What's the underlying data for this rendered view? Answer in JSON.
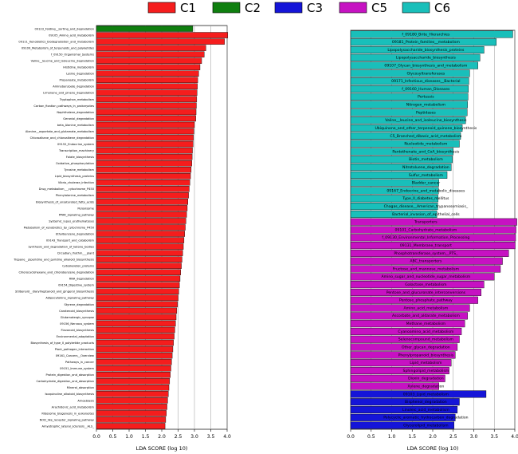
{
  "chart_data": [
    {
      "type": "bar",
      "orientation": "horizontal",
      "xlabel": "LDA SCORE (log 10)",
      "xlim": [
        0,
        4.0
      ],
      "xticks": [
        "0.0",
        "0.5",
        "1.0",
        "1.5",
        "2.0",
        "2.5",
        "3.0",
        "3.5",
        "4.0"
      ],
      "grid": true,
      "bars": [
        {
          "label": "09123_Folding__sorting_and_degradation",
          "value": 2.95,
          "group": "C2"
        },
        {
          "label": "09105_Amino_acid_metabolism",
          "value": 4.02,
          "group": "C1"
        },
        {
          "label": "09111_Xenobiotics_biodegradation_and_metabolism",
          "value": 3.92,
          "group": "C1"
        },
        {
          "label": "09109_Metabolism_of_terpenoids_and_polyketides",
          "value": 3.35,
          "group": "C1"
        },
        {
          "label": "f_09150_Organismal_Systems",
          "value": 3.3,
          "group": "C1"
        },
        {
          "label": "Valine__leucine_and_isoleucine_degradation",
          "value": 3.22,
          "group": "C1"
        },
        {
          "label": "Histidine_metabolism",
          "value": 3.17,
          "group": "C1"
        },
        {
          "label": "Lysine_degradation",
          "value": 3.13,
          "group": "C1"
        },
        {
          "label": "Propanoate_metabolism",
          "value": 3.1,
          "group": "C1"
        },
        {
          "label": "Aminobenzoate_degradation",
          "value": 3.09,
          "group": "C1"
        },
        {
          "label": "Limonene_and_pinene_degradation",
          "value": 3.08,
          "group": "C1"
        },
        {
          "label": "Tryptophan_metabolism",
          "value": 3.07,
          "group": "C1"
        },
        {
          "label": "Carbon_fixation_pathways_in_prokaryotes",
          "value": 3.06,
          "group": "C1"
        },
        {
          "label": "Naphthalene_degradation",
          "value": 3.05,
          "group": "C1"
        },
        {
          "label": "Geraniol_degradation",
          "value": 3.04,
          "group": "C1"
        },
        {
          "label": "beta_Alanine_metabolism",
          "value": 3.0,
          "group": "C1"
        },
        {
          "label": "Alanine__aspartate_and_glutamate_metabolism",
          "value": 2.98,
          "group": "C1"
        },
        {
          "label": "Chloroalkane_and_chloroalkene_degradation",
          "value": 2.97,
          "group": "C1"
        },
        {
          "label": "09152_Endocrine_system",
          "value": 2.96,
          "group": "C1"
        },
        {
          "label": "Transcription_machinery",
          "value": 2.94,
          "group": "C1"
        },
        {
          "label": "Folate_biosynthesis",
          "value": 2.93,
          "group": "C1"
        },
        {
          "label": "Oxidative_phosphorylation",
          "value": 2.92,
          "group": "C1"
        },
        {
          "label": "Tyrosine_metabolism",
          "value": 2.9,
          "group": "C1"
        },
        {
          "label": "Lipid_biosynthesis_proteins",
          "value": 2.88,
          "group": "C1"
        },
        {
          "label": "Vibrio_cholerae_infection",
          "value": 2.86,
          "group": "C1"
        },
        {
          "label": "Drug_metabolism___cytochrome_P450",
          "value": 2.84,
          "group": "C1"
        },
        {
          "label": "Phenylalanine_metabolism",
          "value": 2.82,
          "group": "C1"
        },
        {
          "label": "Biosynthesis_of_unsaturated_fatty_acids",
          "value": 2.8,
          "group": "C1"
        },
        {
          "label": "Peroxisome",
          "value": 2.78,
          "group": "C1"
        },
        {
          "label": "PPAR_signaling_pathway",
          "value": 2.76,
          "group": "C1"
        },
        {
          "label": "Systemic_lupus_erythematosus",
          "value": 2.74,
          "group": "C1"
        },
        {
          "label": "Metabolism_of_xenobiotics_by_cytochrome_P450",
          "value": 2.72,
          "group": "C1"
        },
        {
          "label": "Ethylbenzene_degradation",
          "value": 2.7,
          "group": "C1"
        },
        {
          "label": "09143_Transport_and_catabolism",
          "value": 2.68,
          "group": "C1"
        },
        {
          "label": "Synthesis_and_degradation_of_ketone_bodies",
          "value": 2.66,
          "group": "C1"
        },
        {
          "label": "Circadian_rhythm___plant",
          "value": 2.64,
          "group": "C1"
        },
        {
          "label": "Tropane__piperidine_and_pyridine_alkaloid_biosynthesis",
          "value": 2.62,
          "group": "C1"
        },
        {
          "label": "Cytoskeleton_proteins",
          "value": 2.6,
          "group": "C1"
        },
        {
          "label": "Chlorocyclohexane_and_chlorobenzene_degradation",
          "value": 2.58,
          "group": "C1"
        },
        {
          "label": "RNA_degradation",
          "value": 2.56,
          "group": "C1"
        },
        {
          "label": "09154_Digestive_system",
          "value": 2.54,
          "group": "C1"
        },
        {
          "label": "Stilbenoid__diarylheptanoid_and_gingerol_biosynthesis",
          "value": 2.52,
          "group": "C1"
        },
        {
          "label": "Adipocytokine_signaling_pathway",
          "value": 2.5,
          "group": "C1"
        },
        {
          "label": "Styrene_degradation",
          "value": 2.48,
          "group": "C1"
        },
        {
          "label": "Carotenoid_biosynthesis",
          "value": 2.46,
          "group": "C1"
        },
        {
          "label": "Glutamatergic_synapse",
          "value": 2.44,
          "group": "C1"
        },
        {
          "label": "09156_Nervous_system",
          "value": 2.42,
          "group": "C1"
        },
        {
          "label": "Flavonoid_biosynthesis",
          "value": 2.4,
          "group": "C1"
        },
        {
          "label": "Environmental_adaptation",
          "value": 2.38,
          "group": "C1"
        },
        {
          "label": "Biosynthesis_of_type_II_polyketide_products",
          "value": 2.36,
          "group": "C1"
        },
        {
          "label": "Plant_pathogen_interaction",
          "value": 2.34,
          "group": "C1"
        },
        {
          "label": "09161_Cancers__Overview",
          "value": 2.32,
          "group": "C1"
        },
        {
          "label": "Pathways_in_cancer",
          "value": 2.3,
          "group": "C1"
        },
        {
          "label": "09151_Immune_system",
          "value": 2.28,
          "group": "C1"
        },
        {
          "label": "Protein_digestion_and_absorption",
          "value": 2.26,
          "group": "C1"
        },
        {
          "label": "Carbohydrate_digestion_and_absorption",
          "value": 2.24,
          "group": "C1"
        },
        {
          "label": "Mineral_absorption",
          "value": 2.22,
          "group": "C1"
        },
        {
          "label": "Isoquinoline_alkaloid_biosynthesis",
          "value": 2.2,
          "group": "C1"
        },
        {
          "label": "Amoebiasis",
          "value": 2.18,
          "group": "C1"
        },
        {
          "label": "Arachidonic_acid_metabolism",
          "value": 2.16,
          "group": "C1"
        },
        {
          "label": "Ribosome_biogenesis_in_eukaryotes",
          "value": 2.14,
          "group": "C1"
        },
        {
          "label": "NOD_like_receptor_signaling_pathway",
          "value": 2.12,
          "group": "C1"
        },
        {
          "label": "Amyotrophic_lateral_sclerosis__ALS_",
          "value": 2.1,
          "group": "C1"
        }
      ]
    },
    {
      "type": "bar",
      "orientation": "horizontal",
      "xlabel": "LDA SCORE (log 10)",
      "xlim": [
        0,
        4.0
      ],
      "xticks": [
        "0.0",
        "0.5",
        "1.0",
        "1.5",
        "2.0",
        "2.5",
        "3.0",
        "3.5",
        "4.0"
      ],
      "grid": true,
      "bars": [
        {
          "label": "f_09180_Brite_Hierarchies",
          "value": 3.95,
          "group": "C6"
        },
        {
          "label": "09181_Protein_families__metabolism",
          "value": 3.55,
          "group": "C6"
        },
        {
          "label": "Lipopolysaccharide_biosynthesis_proteins",
          "value": 3.25,
          "group": "C6"
        },
        {
          "label": "Lipopolysaccharide_biosynthesis",
          "value": 3.15,
          "group": "C6"
        },
        {
          "label": "09107_Glycan_biosynthesis_and_metabolism",
          "value": 3.1,
          "group": "C6"
        },
        {
          "label": "Glycosyltransferases",
          "value": 2.9,
          "group": "C6"
        },
        {
          "label": "09171_Infectious_diseases__Bacterial",
          "value": 2.88,
          "group": "C6"
        },
        {
          "label": "f_09160_Human_Diseases",
          "value": 2.87,
          "group": "C6"
        },
        {
          "label": "Pertussis",
          "value": 2.86,
          "group": "C6"
        },
        {
          "label": "Nitrogen_metabolism",
          "value": 2.85,
          "group": "C6"
        },
        {
          "label": "Peptidases",
          "value": 2.84,
          "group": "C6"
        },
        {
          "label": "Valine__leucine_and_isoleucine_biosynthesis",
          "value": 2.8,
          "group": "C6"
        },
        {
          "label": "Ubiquinone_and_other_terpenoid_quinone_biosynthesis",
          "value": 2.72,
          "group": "C6"
        },
        {
          "label": "C5_Branched_dibasic_acid_metabolism",
          "value": 2.68,
          "group": "C6"
        },
        {
          "label": "Nucleotide_metabolism",
          "value": 2.65,
          "group": "C6"
        },
        {
          "label": "Pantothenate_and_CoA_biosynthesis",
          "value": 2.5,
          "group": "C6"
        },
        {
          "label": "Biotin_metabolism",
          "value": 2.48,
          "group": "C6"
        },
        {
          "label": "Nitrotoluene_degradation",
          "value": 2.45,
          "group": "C6"
        },
        {
          "label": "Sulfur_metabolism",
          "value": 2.35,
          "group": "C6"
        },
        {
          "label": "Bladder_cancer",
          "value": 2.15,
          "group": "C6"
        },
        {
          "label": "09167_Endocrine_and_metabolic_diseases",
          "value": 2.14,
          "group": "C6"
        },
        {
          "label": "Type_II_diabetes_mellitus",
          "value": 2.13,
          "group": "C6"
        },
        {
          "label": "Chagas_disease__American_trypanosomiasis_",
          "value": 2.12,
          "group": "C6"
        },
        {
          "label": "Bacterial_invasion_of_epithelial_cells",
          "value": 2.1,
          "group": "C6"
        },
        {
          "label": "Transporters",
          "value": 4.05,
          "group": "C5"
        },
        {
          "label": "09101_Carbohydrate_metabolism",
          "value": 4.03,
          "group": "C5"
        },
        {
          "label": "f_09130_Environmental_Information_Processing",
          "value": 4.02,
          "group": "C5"
        },
        {
          "label": "09131_Membrane_transport",
          "value": 4.01,
          "group": "C5"
        },
        {
          "label": "Phosphotransferase_system__PTS_",
          "value": 3.85,
          "group": "C5"
        },
        {
          "label": "ABC_transporters",
          "value": 3.7,
          "group": "C5"
        },
        {
          "label": "Fructose_and_mannose_metabolism",
          "value": 3.65,
          "group": "C5"
        },
        {
          "label": "Amino_sugar_and_nucleotide_sugar_metabolism",
          "value": 3.5,
          "group": "C5"
        },
        {
          "label": "Galactose_metabolism",
          "value": 3.25,
          "group": "C5"
        },
        {
          "label": "Pentose_and_glucuronate_interconversions",
          "value": 3.18,
          "group": "C5"
        },
        {
          "label": "Pentose_phosphate_pathway",
          "value": 3.1,
          "group": "C5"
        },
        {
          "label": "Amino_acid_metabolism",
          "value": 2.9,
          "group": "C5"
        },
        {
          "label": "Ascorbate_and_aldarate_metabolism",
          "value": 2.85,
          "group": "C5"
        },
        {
          "label": "Methane_metabolism",
          "value": 2.78,
          "group": "C5"
        },
        {
          "label": "Cyanoamino_acid_metabolism",
          "value": 2.7,
          "group": "C5"
        },
        {
          "label": "Selenocompound_metabolism",
          "value": 2.65,
          "group": "C5"
        },
        {
          "label": "Other_glycan_degradation",
          "value": 2.6,
          "group": "C5"
        },
        {
          "label": "Phenylpropanoid_biosynthesis",
          "value": 2.55,
          "group": "C5"
        },
        {
          "label": "Lipid_metabolism",
          "value": 2.45,
          "group": "C5"
        },
        {
          "label": "Sphingolipid_metabolism",
          "value": 2.4,
          "group": "C5"
        },
        {
          "label": "Dioxin_degradation",
          "value": 2.3,
          "group": "C5"
        },
        {
          "label": "Xylene_degradation",
          "value": 2.15,
          "group": "C5"
        },
        {
          "label": "09103_Lipid_metabolism",
          "value": 3.3,
          "group": "C3"
        },
        {
          "label": "Bisphenol_degradation",
          "value": 2.65,
          "group": "C3"
        },
        {
          "label": "Linoleic_acid_metabolism",
          "value": 2.6,
          "group": "C3"
        },
        {
          "label": "Polycyclic_aromatic_hydrocarbon_degradation",
          "value": 2.55,
          "group": "C3"
        },
        {
          "label": "Glycerolipid_metabolism",
          "value": 2.52,
          "group": "C3"
        }
      ]
    }
  ],
  "legend": {
    "items": [
      {
        "label": "C1",
        "color": "#f51d1d"
      },
      {
        "label": "C2",
        "color": "#0f7f0f"
      },
      {
        "label": "C3",
        "color": "#1515d8"
      },
      {
        "label": "C5",
        "color": "#c612c2"
      },
      {
        "label": "C6",
        "color": "#19bfba"
      }
    ]
  }
}
